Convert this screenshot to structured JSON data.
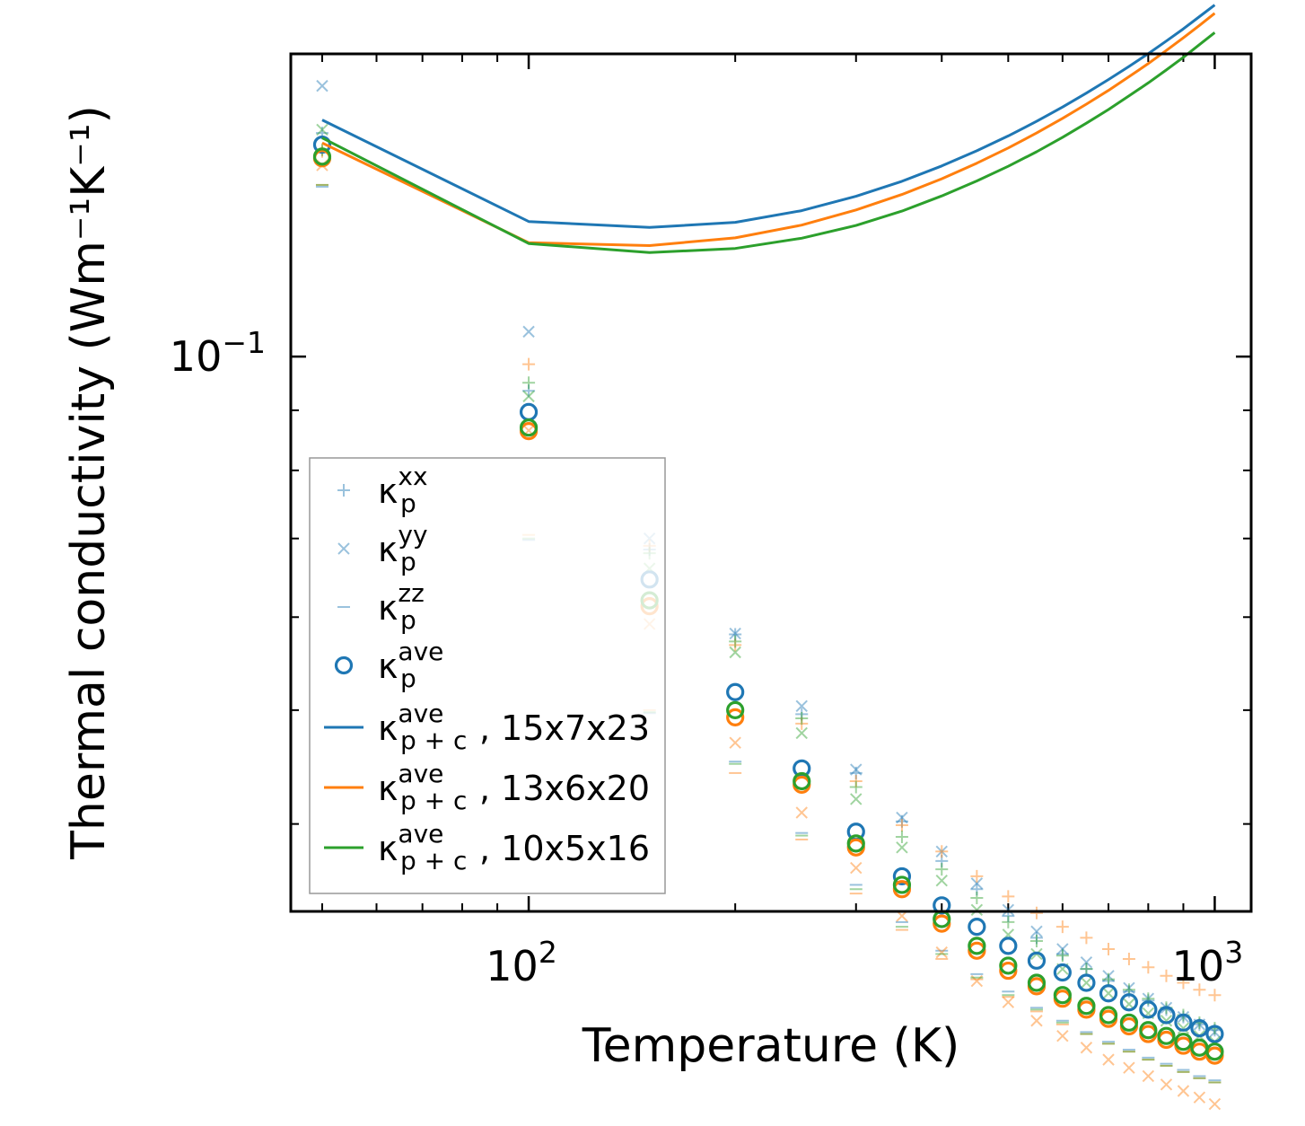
{
  "chart_data": {
    "type": "scatter",
    "xscale": "log",
    "yscale": "log",
    "xlim": [
      45,
      1130
    ],
    "ylim": [
      0.0337,
      0.181
    ],
    "xlabel": "Temperature (K)",
    "ylabel": "Thermal conductivity (Wm⁻¹K⁻¹)",
    "xticks": [
      {
        "value": 100,
        "label": "10",
        "exp": "2"
      },
      {
        "value": 1000,
        "label": "10",
        "exp": "3"
      }
    ],
    "yticks": [
      {
        "value": 0.1,
        "label": "10",
        "exp": "−1"
      }
    ],
    "colors": {
      "blue": "#1f77b4",
      "orange": "#ff7f0e",
      "green": "#2ca02c"
    },
    "x": [
      50,
      100,
      150,
      200,
      250,
      300,
      350,
      400,
      450,
      500,
      550,
      600,
      650,
      700,
      750,
      800,
      850,
      900,
      950,
      1000
    ],
    "scatter_series": [
      {
        "name": "15x7x23",
        "color": "#1f77b4",
        "xx": [
          0.155,
          0.0935,
          0.0685,
          0.058,
          0.0496,
          0.0442,
          0.0402,
          0.0372,
          0.0352,
          0.0334,
          0.032,
          0.031,
          0.0301,
          0.0294,
          0.0288,
          0.0283,
          0.0278,
          0.0274,
          0.027,
          0.0267
        ],
        "yy": [
          0.17,
          0.105,
          0.07,
          0.0581,
          0.0504,
          0.0445,
          0.0405,
          0.0379,
          0.0356,
          0.0338,
          0.0324,
          0.0313,
          0.0305,
          0.0297,
          0.029,
          0.0284,
          0.0279,
          0.0274,
          0.027,
          0.0266
        ],
        "zz": [
          0.1395,
          0.0698,
          0.0497,
          0.0452,
          0.0393,
          0.0355,
          0.033,
          0.0312,
          0.0298,
          0.0288,
          0.0279,
          0.0272,
          0.0266,
          0.0261,
          0.0257,
          0.0253,
          0.025,
          0.0247,
          0.0244,
          0.0242
        ],
        "ave": [
          0.1515,
          0.0897,
          0.0646,
          0.0518,
          0.0446,
          0.0394,
          0.0361,
          0.0341,
          0.0327,
          0.0315,
          0.0306,
          0.0299,
          0.0293,
          0.0287,
          0.0282,
          0.0278,
          0.0275,
          0.0271,
          0.0268,
          0.0265
        ]
      },
      {
        "name": "13x6x20",
        "color": "#ff7f0e",
        "xx": [
          0.1495,
          0.0985,
          0.069,
          0.0568,
          0.0487,
          0.0435,
          0.0399,
          0.0379,
          0.0361,
          0.0347,
          0.0336,
          0.0327,
          0.032,
          0.0313,
          0.0307,
          0.0302,
          0.0297,
          0.0293,
          0.0289,
          0.0286
        ],
        "yy": [
          0.1455,
          0.0865,
          0.0592,
          0.0469,
          0.0409,
          0.0367,
          0.0334,
          0.0311,
          0.0294,
          0.0282,
          0.0272,
          0.0264,
          0.0258,
          0.0252,
          0.0248,
          0.0244,
          0.024,
          0.0237,
          0.0234,
          0.0231
        ],
        "zz": [
          0.14,
          0.0705,
          0.05,
          0.0442,
          0.0388,
          0.0349,
          0.0325,
          0.0307,
          0.0295,
          0.0285,
          0.0277,
          0.027,
          0.0265,
          0.026,
          0.0256,
          0.0252,
          0.0249,
          0.0246,
          0.0243,
          0.0241
        ],
        "ave": [
          0.1475,
          0.0864,
          0.0613,
          0.0493,
          0.0432,
          0.0382,
          0.0352,
          0.0329,
          0.0312,
          0.03,
          0.0291,
          0.0284,
          0.0278,
          0.0273,
          0.0269,
          0.0265,
          0.0262,
          0.0259,
          0.0256,
          0.0254
        ]
      },
      {
        "name": "10x5x16",
        "color": "#2ca02c",
        "xx": [
          0.15,
          0.095,
          0.068,
          0.0572,
          0.0492,
          0.043,
          0.039,
          0.0366,
          0.0346,
          0.033,
          0.0318,
          0.0309,
          0.0301,
          0.0295,
          0.0289,
          0.0284,
          0.0279,
          0.0275,
          0.0271,
          0.0268
        ],
        "yy": [
          0.156,
          0.0925,
          0.066,
          0.056,
          0.0478,
          0.042,
          0.0382,
          0.0358,
          0.0338,
          0.0322,
          0.031,
          0.0301,
          0.0293,
          0.0287,
          0.0281,
          0.0276,
          0.0272,
          0.0268,
          0.0264,
          0.0261
        ],
        "zz": [
          0.14,
          0.07,
          0.0498,
          0.045,
          0.0391,
          0.0352,
          0.0327,
          0.031,
          0.0296,
          0.0286,
          0.0278,
          0.0271,
          0.0265,
          0.026,
          0.0256,
          0.0252,
          0.0249,
          0.0246,
          0.0243,
          0.0241
        ],
        "ave": [
          0.148,
          0.087,
          0.062,
          0.05,
          0.0435,
          0.0385,
          0.0355,
          0.0332,
          0.0315,
          0.0303,
          0.0293,
          0.0286,
          0.028,
          0.0275,
          0.0271,
          0.0267,
          0.0264,
          0.0261,
          0.0258,
          0.0256
        ]
      }
    ],
    "line_series": [
      {
        "name": "15x7x23",
        "color": "#1f77b4",
        "x": [
          50,
          100,
          150,
          200,
          250,
          300,
          350,
          400,
          450,
          500,
          550,
          600,
          650,
          700,
          750,
          800,
          850,
          900,
          950,
          1000
        ],
        "values": [
          0.159,
          0.1303,
          0.1288,
          0.1301,
          0.1331,
          0.1369,
          0.141,
          0.1453,
          0.1497,
          0.1541,
          0.1586,
          0.1631,
          0.1676,
          0.1721,
          0.1766,
          0.1811,
          0.1856,
          0.1901,
          0.1947,
          0.1992
        ]
      },
      {
        "name": "13x6x20",
        "color": "#ff7f0e",
        "x": [
          50,
          100,
          150,
          200,
          250,
          300,
          350,
          400,
          450,
          500,
          550,
          600,
          650,
          700,
          750,
          800,
          850,
          900,
          950,
          1000
        ],
        "values": [
          0.152,
          0.125,
          0.1243,
          0.1262,
          0.1294,
          0.1333,
          0.1374,
          0.1417,
          0.1461,
          0.1505,
          0.155,
          0.1595,
          0.164,
          0.1685,
          0.1731,
          0.1776,
          0.1822,
          0.1868,
          0.1914,
          0.196
        ]
      },
      {
        "name": "10x5x16",
        "color": "#2ca02c",
        "x": [
          50,
          100,
          150,
          200,
          250,
          300,
          350,
          400,
          450,
          500,
          550,
          600,
          650,
          700,
          750,
          800,
          850,
          900,
          950,
          1000
        ],
        "values": [
          0.1535,
          0.1248,
          0.1226,
          0.1236,
          0.1261,
          0.1293,
          0.133,
          0.137,
          0.1411,
          0.1452,
          0.1494,
          0.1537,
          0.158,
          0.1623,
          0.1667,
          0.171,
          0.1754,
          0.1798,
          0.1843,
          0.1887
        ]
      }
    ],
    "legend": {
      "placement": "lower-left",
      "entries": [
        {
          "marker": "plus",
          "sym": "κ",
          "sub": "p",
          "sup": "xx",
          "suffix": ""
        },
        {
          "marker": "cross",
          "sym": "κ",
          "sub": "p",
          "sup": "yy",
          "suffix": ""
        },
        {
          "marker": "dash",
          "sym": "κ",
          "sub": "p",
          "sup": "zz",
          "suffix": ""
        },
        {
          "marker": "circle",
          "sym": "κ",
          "sub": "p",
          "sup": "ave",
          "suffix": ""
        },
        {
          "marker": "line-blue",
          "sym": "κ",
          "sub": "p + c",
          "sup": "ave",
          "suffix": ", 15x7x23"
        },
        {
          "marker": "line-orange",
          "sym": "κ",
          "sub": "p + c",
          "sup": "ave",
          "suffix": ", 13x6x20"
        },
        {
          "marker": "line-green",
          "sym": "κ",
          "sub": "p + c",
          "sup": "ave",
          "suffix": ", 10x5x16"
        }
      ]
    }
  }
}
